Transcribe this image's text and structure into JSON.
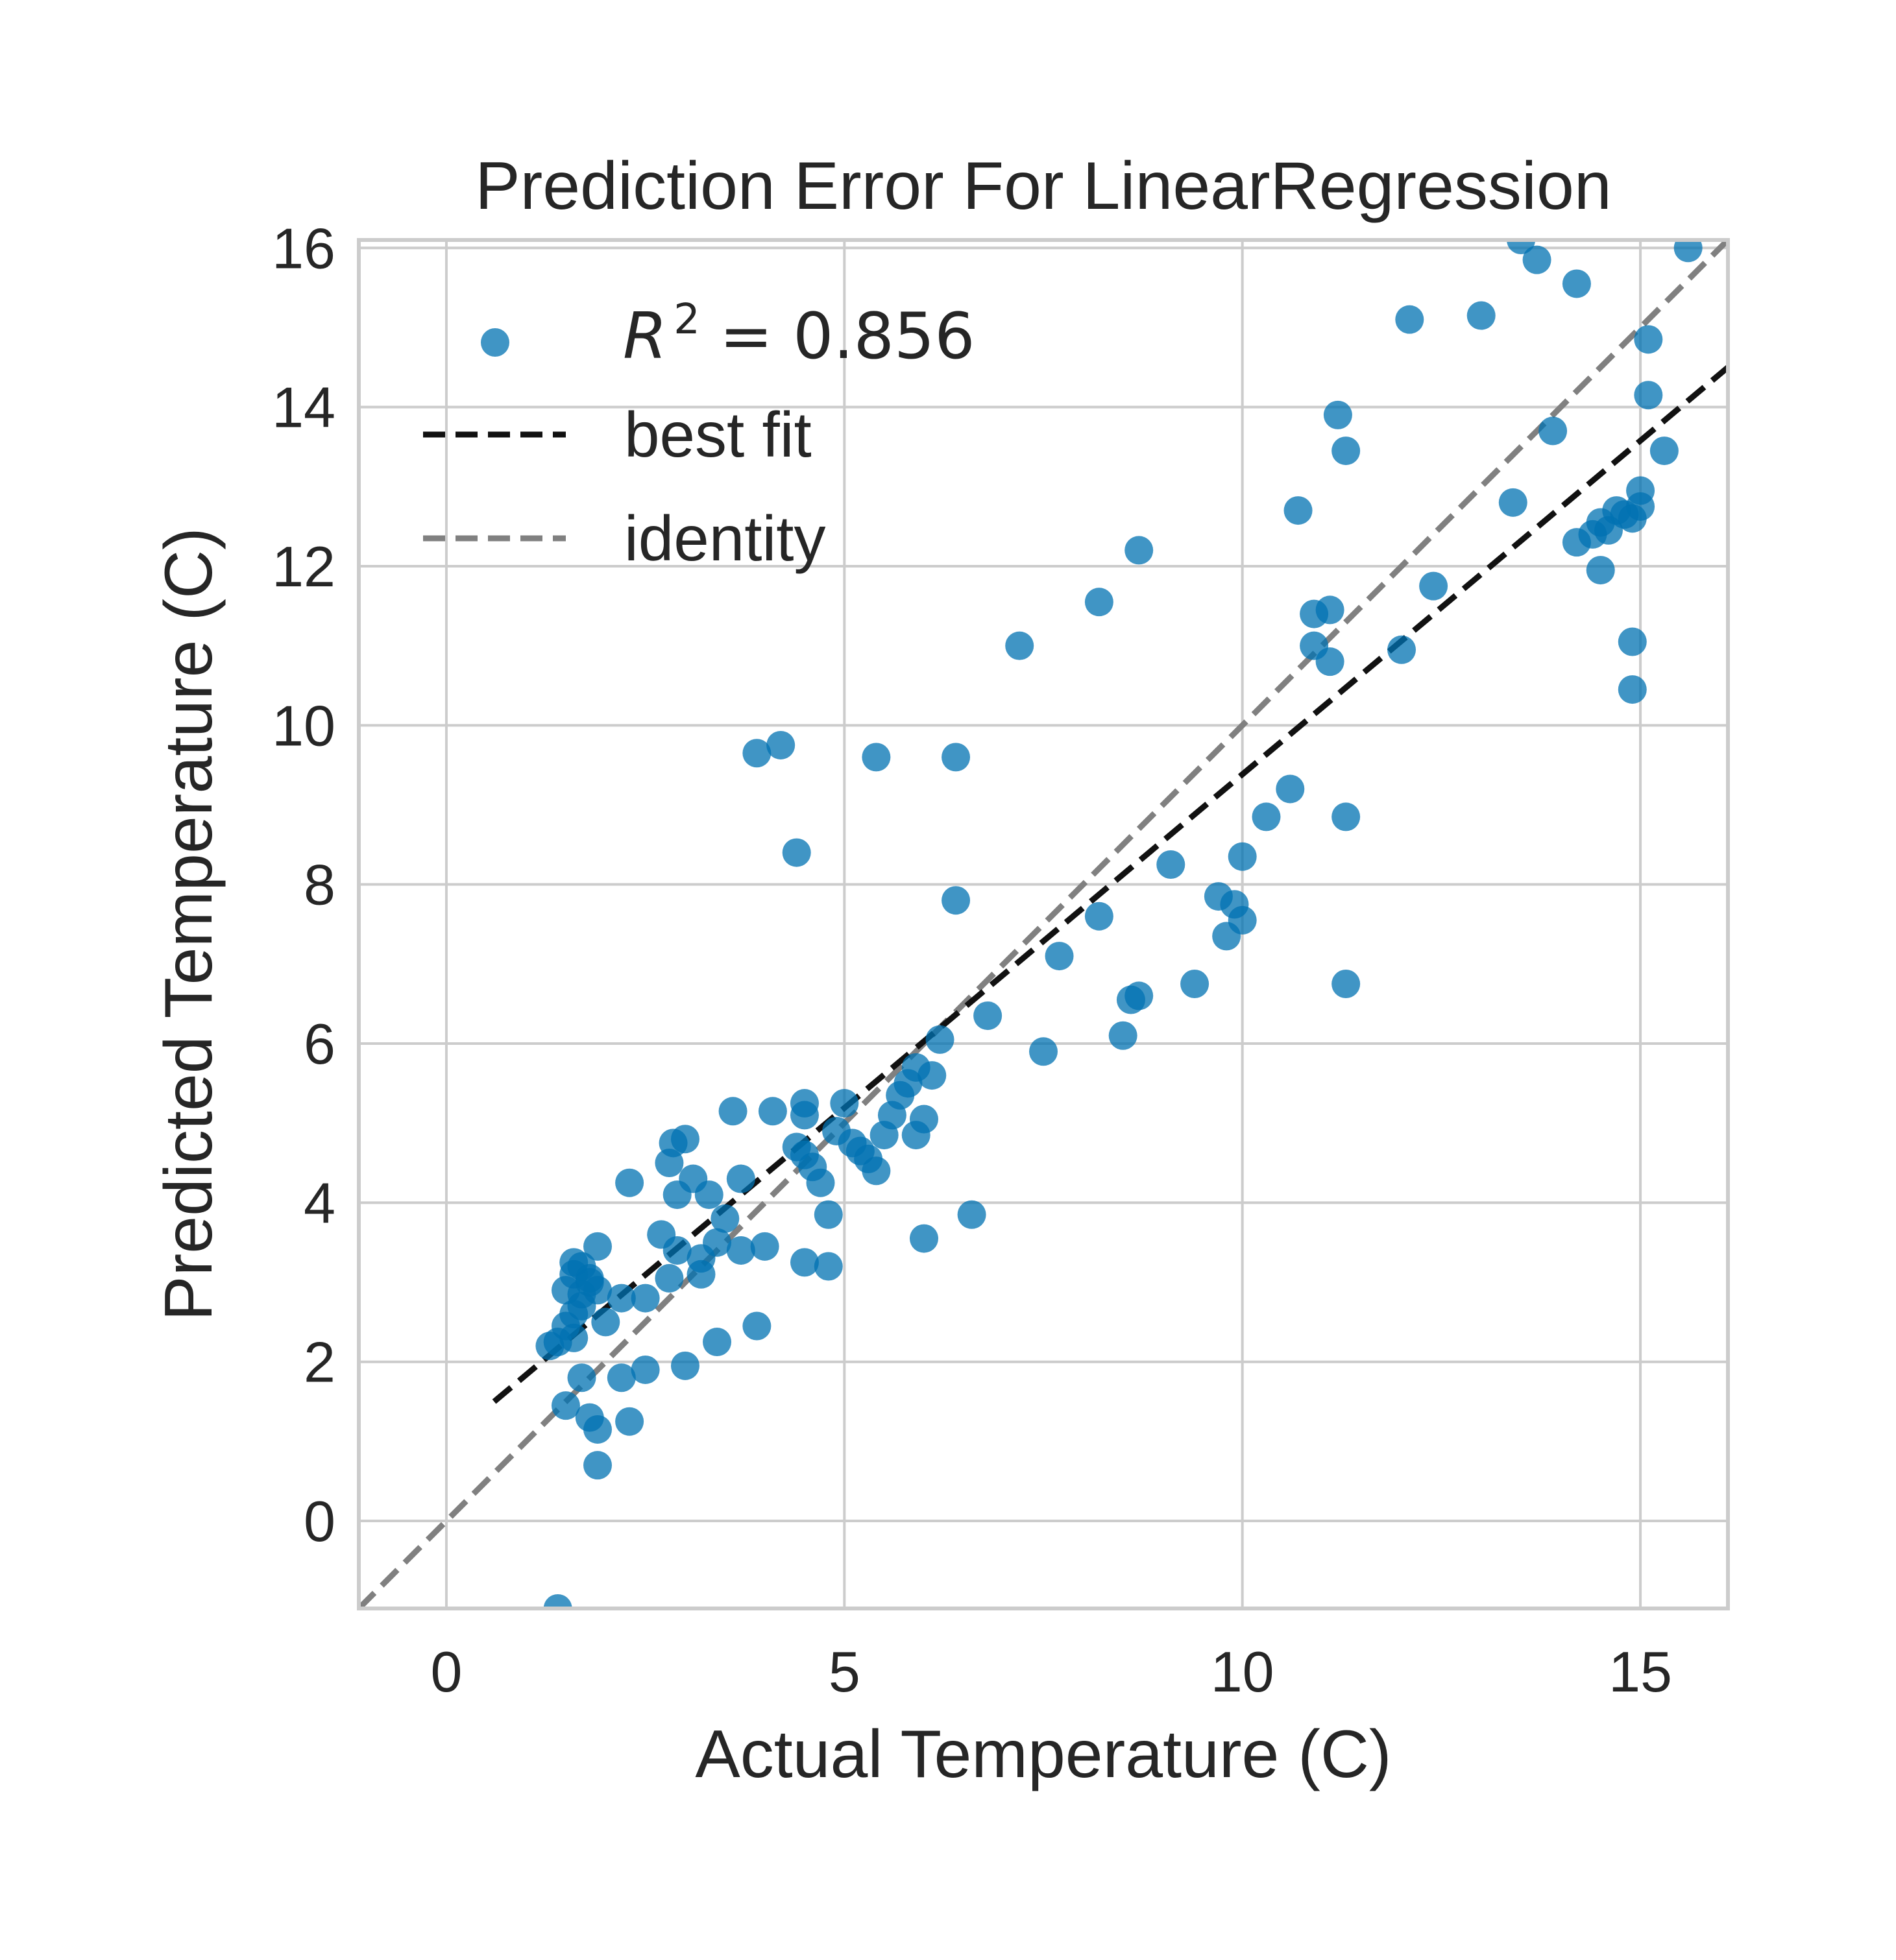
{
  "chart_data": {
    "type": "scatter",
    "title": "Prediction Error For LinearRegression",
    "xlabel": "Actual Temperature (C)",
    "ylabel": "Predicted Temperature (C)",
    "xlim": [
      -1.1,
      16.1
    ],
    "ylim": [
      -1.1,
      16.1
    ],
    "xticks": [
      0,
      5,
      10,
      15
    ],
    "yticks": [
      0,
      2,
      4,
      6,
      8,
      10,
      12,
      14,
      16
    ],
    "grid": true,
    "legend_position": "top-left",
    "legend": {
      "r2_label": "R² = 0.856",
      "r2_symbol": "R",
      "r2_exponent": "2",
      "r2_value": "= 0.856",
      "best_fit_label": "best fit",
      "identity_label": "identity"
    },
    "colors": {
      "points": "#0072B2",
      "best_fit": "#111111",
      "identity": "#808080",
      "grid": "#CCCCCC",
      "frame": "#CCCCCC"
    },
    "best_fit": {
      "x": [
        0.6,
        16.1
      ],
      "y": [
        1.5,
        14.5
      ]
    },
    "identity": {
      "x": [
        -1.1,
        16.1
      ],
      "y": [
        -1.1,
        16.1
      ]
    },
    "points": [
      [
        1.4,
        -1.1
      ],
      [
        1.5,
        1.45
      ],
      [
        1.7,
        1.8
      ],
      [
        1.8,
        1.3
      ],
      [
        1.9,
        1.15
      ],
      [
        1.9,
        0.7
      ],
      [
        2.2,
        1.8
      ],
      [
        2.3,
        1.25
      ],
      [
        2.5,
        1.9
      ],
      [
        3.0,
        1.95
      ],
      [
        3.4,
        2.25
      ],
      [
        3.9,
        2.45
      ],
      [
        1.3,
        2.2
      ],
      [
        1.4,
        2.25
      ],
      [
        1.5,
        2.45
      ],
      [
        1.6,
        2.3
      ],
      [
        1.6,
        2.6
      ],
      [
        1.7,
        2.7
      ],
      [
        1.6,
        3.1
      ],
      [
        1.7,
        3.2
      ],
      [
        1.8,
        3.05
      ],
      [
        1.9,
        3.45
      ],
      [
        1.5,
        2.9
      ],
      [
        1.6,
        3.25
      ],
      [
        1.7,
        2.85
      ],
      [
        1.8,
        3.0
      ],
      [
        1.9,
        2.9
      ],
      [
        2.0,
        2.5
      ],
      [
        2.2,
        2.8
      ],
      [
        2.5,
        2.8
      ],
      [
        2.3,
        4.25
      ],
      [
        2.7,
        3.6
      ],
      [
        2.8,
        3.05
      ],
      [
        2.9,
        3.4
      ],
      [
        2.8,
        4.5
      ],
      [
        2.9,
        4.1
      ],
      [
        2.85,
        4.75
      ],
      [
        3.0,
        4.8
      ],
      [
        3.1,
        4.3
      ],
      [
        3.2,
        3.1
      ],
      [
        3.2,
        3.3
      ],
      [
        3.3,
        4.1
      ],
      [
        3.4,
        3.5
      ],
      [
        3.5,
        3.8
      ],
      [
        3.6,
        5.15
      ],
      [
        3.7,
        4.3
      ],
      [
        3.7,
        3.4
      ],
      [
        4.0,
        3.45
      ],
      [
        4.1,
        5.15
      ],
      [
        4.4,
        4.7
      ],
      [
        4.5,
        5.25
      ],
      [
        4.5,
        5.1
      ],
      [
        4.5,
        3.25
      ],
      [
        4.5,
        4.6
      ],
      [
        4.6,
        4.45
      ],
      [
        4.7,
        4.25
      ],
      [
        4.8,
        3.85
      ],
      [
        4.8,
        3.2
      ],
      [
        4.9,
        4.9
      ],
      [
        5.0,
        5.25
      ],
      [
        5.1,
        4.75
      ],
      [
        5.2,
        4.65
      ],
      [
        5.3,
        4.55
      ],
      [
        5.4,
        4.4
      ],
      [
        5.5,
        4.85
      ],
      [
        5.6,
        5.1
      ],
      [
        5.7,
        5.35
      ],
      [
        5.8,
        5.5
      ],
      [
        5.9,
        5.7
      ],
      [
        5.9,
        4.85
      ],
      [
        6.0,
        5.05
      ],
      [
        6.1,
        5.6
      ],
      [
        6.0,
        3.55
      ],
      [
        6.6,
        3.85
      ],
      [
        6.2,
        6.05
      ],
      [
        6.8,
        6.35
      ],
      [
        7.5,
        5.9
      ],
      [
        7.7,
        7.1
      ],
      [
        8.2,
        7.6
      ],
      [
        8.5,
        6.1
      ],
      [
        8.6,
        6.55
      ],
      [
        8.7,
        6.6
      ],
      [
        9.1,
        8.25
      ],
      [
        9.4,
        6.75
      ],
      [
        9.7,
        7.85
      ],
      [
        9.8,
        7.35
      ],
      [
        9.9,
        7.75
      ],
      [
        10.0,
        7.55
      ],
      [
        10.0,
        8.35
      ],
      [
        10.3,
        8.85
      ],
      [
        10.6,
        9.2
      ],
      [
        11.3,
        8.85
      ],
      [
        11.3,
        6.75
      ],
      [
        6.4,
        7.8
      ],
      [
        6.4,
        9.6
      ],
      [
        5.4,
        9.6
      ],
      [
        3.9,
        9.65
      ],
      [
        4.2,
        9.75
      ],
      [
        4.4,
        8.4
      ],
      [
        7.2,
        11.0
      ],
      [
        8.2,
        11.55
      ],
      [
        8.7,
        12.2
      ],
      [
        10.7,
        12.7
      ],
      [
        10.9,
        11.4
      ],
      [
        10.9,
        11.0
      ],
      [
        11.1,
        11.45
      ],
      [
        11.1,
        10.8
      ],
      [
        11.2,
        13.9
      ],
      [
        11.3,
        13.45
      ],
      [
        12.0,
        10.95
      ],
      [
        12.1,
        15.1
      ],
      [
        12.4,
        11.75
      ],
      [
        13.0,
        15.15
      ],
      [
        13.4,
        12.8
      ],
      [
        13.5,
        16.1
      ],
      [
        13.7,
        15.85
      ],
      [
        13.9,
        13.7
      ],
      [
        14.2,
        15.55
      ],
      [
        14.2,
        12.3
      ],
      [
        14.4,
        12.4
      ],
      [
        14.5,
        11.95
      ],
      [
        14.5,
        12.55
      ],
      [
        14.6,
        12.45
      ],
      [
        14.7,
        12.7
      ],
      [
        14.8,
        12.65
      ],
      [
        14.9,
        12.6
      ],
      [
        14.9,
        11.05
      ],
      [
        14.9,
        10.45
      ],
      [
        15.0,
        12.95
      ],
      [
        15.0,
        12.75
      ],
      [
        15.1,
        14.85
      ],
      [
        15.1,
        14.15
      ],
      [
        15.3,
        13.45
      ],
      [
        15.6,
        16.0
      ]
    ]
  }
}
